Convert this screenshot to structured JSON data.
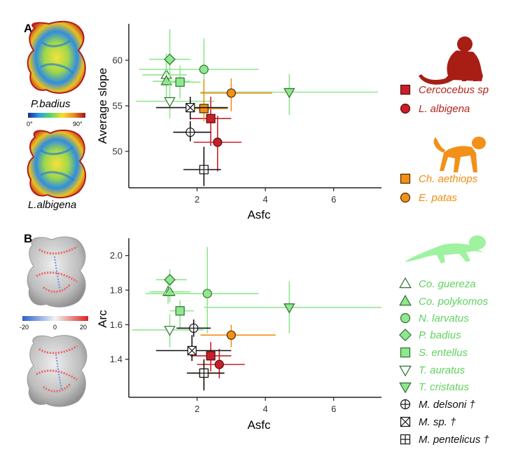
{
  "figure": {
    "panelA_label": "A",
    "panelB_label": "B",
    "tooth1_label": "P.badius",
    "tooth2_label": "L.albigena",
    "scaleA_min": "0°",
    "scaleA_max": "90°",
    "scaleB_min": "-20",
    "scaleB_mid": "0",
    "scaleB_max": "20"
  },
  "colors": {
    "red": "#c8202a",
    "orange": "#f39018",
    "green": "#8fe88f",
    "green_edge": "#4fae4f",
    "black": "#000000"
  },
  "legend": [
    {
      "label": "Cercocebus sp",
      "marker": "square",
      "group": "red"
    },
    {
      "label": "L. albigena",
      "marker": "circle",
      "group": "red"
    },
    {
      "label": "Ch. aethiops",
      "marker": "square",
      "group": "orange"
    },
    {
      "label": "E. patas",
      "marker": "circle",
      "group": "orange"
    },
    {
      "label": "Co. guereza",
      "marker": "triangle-up-open",
      "group": "green"
    },
    {
      "label": "Co. polykomos",
      "marker": "triangle-up",
      "group": "green"
    },
    {
      "label": "N. larvatus",
      "marker": "circle",
      "group": "green"
    },
    {
      "label": "P. badius",
      "marker": "diamond",
      "group": "green"
    },
    {
      "label": "S. entellus",
      "marker": "square",
      "group": "green"
    },
    {
      "label": "T. auratus",
      "marker": "triangle-down-open",
      "group": "green"
    },
    {
      "label": "T. cristatus",
      "marker": "triangle-down",
      "group": "green"
    },
    {
      "label": "M. delsoni †",
      "marker": "circle-plus",
      "group": "black"
    },
    {
      "label": "M. sp. †",
      "marker": "square-x",
      "group": "black"
    },
    {
      "label": "M. pentelicus †",
      "marker": "square-plus",
      "group": "black"
    }
  ],
  "chart_data": [
    {
      "type": "scatter",
      "title": "",
      "xlabel": "Asfc",
      "ylabel": "Average slope",
      "xlim": [
        0,
        7.4
      ],
      "ylim": [
        46,
        64
      ],
      "xticks": [
        "2",
        "4",
        "6"
      ],
      "yticks": [
        "50",
        "55",
        "60"
      ],
      "points": [
        {
          "name": "Cercocebus sp",
          "x": 2.4,
          "y": 53.6,
          "xerr": [
            1.8,
            3.0
          ],
          "yerr": [
            50.6,
            56.0
          ]
        },
        {
          "name": "L. albigena",
          "x": 2.6,
          "y": 51.0,
          "xerr": [
            1.9,
            3.3
          ],
          "yerr": [
            47.8,
            53.9
          ]
        },
        {
          "name": "Ch. aethiops",
          "x": 2.2,
          "y": 54.7,
          "xerr": [
            1.7,
            2.9
          ],
          "yerr": [
            53.3,
            57.9
          ]
        },
        {
          "name": "E. patas",
          "x": 3.0,
          "y": 56.4,
          "xerr": [
            2.1,
            4.2
          ],
          "yerr": [
            54.4,
            58.0
          ]
        },
        {
          "name": "Co. guereza",
          "x": 1.1,
          "y": 58.4,
          "xerr": [
            0.4,
            1.7
          ],
          "yerr": [
            56.2,
            60.8
          ]
        },
        {
          "name": "Co. polykomos",
          "x": 1.1,
          "y": 57.7,
          "xerr": [
            0.7,
            1.8
          ],
          "yerr": [
            55.5,
            60.6
          ]
        },
        {
          "name": "N. larvatus",
          "x": 2.2,
          "y": 59.0,
          "xerr": [
            0.3,
            3.8
          ],
          "yerr": [
            55.5,
            62.4
          ]
        },
        {
          "name": "P. badius",
          "x": 1.2,
          "y": 60.1,
          "xerr": [
            0.6,
            1.8
          ],
          "yerr": [
            57.1,
            63.4
          ]
        },
        {
          "name": "S. entellus",
          "x": 1.5,
          "y": 57.6,
          "xerr": [
            1.0,
            2.1
          ],
          "yerr": [
            55.8,
            59.4
          ]
        },
        {
          "name": "T. auratus",
          "x": 1.2,
          "y": 55.5,
          "xerr": [
            0.2,
            2.5
          ],
          "yerr": [
            53.6,
            57.4
          ]
        },
        {
          "name": "T. cristatus",
          "x": 4.7,
          "y": 56.5,
          "xerr": [
            2.1,
            7.3
          ],
          "yerr": [
            54.0,
            58.5
          ]
        },
        {
          "name": "M. delsoni †",
          "x": 1.8,
          "y": 52.1,
          "xerr": [
            1.3,
            2.4
          ],
          "yerr": [
            51.1,
            53.3
          ]
        },
        {
          "name": "M. sp. †",
          "x": 1.8,
          "y": 54.8,
          "xerr": [
            0.8,
            2.9
          ],
          "yerr": [
            53.5,
            56.0
          ]
        },
        {
          "name": "M. pentelicus †",
          "x": 2.2,
          "y": 48.0,
          "xerr": [
            1.6,
            2.7
          ],
          "yerr": [
            46.2,
            50.5
          ]
        }
      ]
    },
    {
      "type": "scatter",
      "title": "",
      "xlabel": "Asfc",
      "ylabel": "Arc",
      "xlim": [
        0,
        7.4
      ],
      "ylim": [
        1.18,
        2.1
      ],
      "xticks": [
        "2",
        "4",
        "6"
      ],
      "yticks": [
        "1.4",
        "1.6",
        "1.8",
        "2.0"
      ],
      "points": [
        {
          "name": "Cercocebus sp",
          "x": 2.4,
          "y": 1.42,
          "xerr": [
            1.8,
            3.0
          ],
          "yerr": [
            1.33,
            1.5
          ]
        },
        {
          "name": "L. albigena",
          "x": 2.65,
          "y": 1.37,
          "xerr": [
            2.0,
            3.4
          ],
          "yerr": [
            1.29,
            1.46
          ]
        },
        {
          "name": "Ch. aethiops",
          "x": 2.2,
          "y": 1.32,
          "xerr": [
            1.8,
            2.8
          ],
          "yerr": [
            1.24,
            1.38
          ]
        },
        {
          "name": "E. patas",
          "x": 3.0,
          "y": 1.54,
          "xerr": [
            2.1,
            4.3
          ],
          "yerr": [
            1.47,
            1.6
          ]
        },
        {
          "name": "Co. guereza",
          "x": 1.15,
          "y": 1.79,
          "xerr": [
            0.7,
            1.6
          ],
          "yerr": [
            1.72,
            1.86
          ]
        },
        {
          "name": "Co. polykomos",
          "x": 1.2,
          "y": 1.79,
          "xerr": [
            0.6,
            1.8
          ],
          "yerr": [
            1.73,
            1.85
          ]
        },
        {
          "name": "N. larvatus",
          "x": 2.3,
          "y": 1.78,
          "xerr": [
            0.5,
            3.8
          ],
          "yerr": [
            1.55,
            2.05
          ]
        },
        {
          "name": "P. badius",
          "x": 1.2,
          "y": 1.86,
          "xerr": [
            0.8,
            1.7
          ],
          "yerr": [
            1.79,
            1.92
          ]
        },
        {
          "name": "S. entellus",
          "x": 1.5,
          "y": 1.68,
          "xerr": [
            1.2,
            1.9
          ],
          "yerr": [
            1.58,
            1.74
          ]
        },
        {
          "name": "T. auratus",
          "x": 1.2,
          "y": 1.57,
          "xerr": [
            0.1,
            2.2
          ],
          "yerr": [
            1.47,
            1.66
          ]
        },
        {
          "name": "T. cristatus",
          "x": 4.7,
          "y": 1.7,
          "xerr": [
            2.2,
            7.4
          ],
          "yerr": [
            1.55,
            1.85
          ]
        },
        {
          "name": "M. delsoni †",
          "x": 1.9,
          "y": 1.58,
          "xerr": [
            1.4,
            2.4
          ],
          "yerr": [
            1.53,
            1.63
          ]
        },
        {
          "name": "M. sp. †",
          "x": 1.85,
          "y": 1.45,
          "xerr": [
            0.8,
            3.0
          ],
          "yerr": [
            1.39,
            1.54
          ]
        },
        {
          "name": "M. pentelicus †",
          "x": 2.2,
          "y": 1.32,
          "xerr": [
            1.7,
            2.8
          ],
          "yerr": [
            1.22,
            1.4
          ]
        }
      ]
    }
  ]
}
